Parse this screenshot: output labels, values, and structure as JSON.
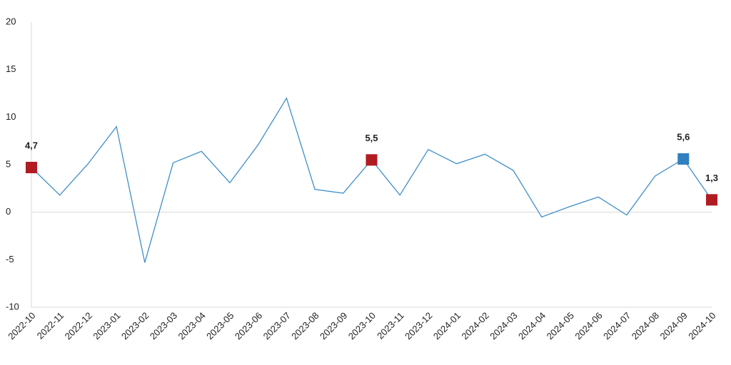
{
  "chart_data": {
    "type": "line",
    "x": [
      "2022-10",
      "2022-11",
      "2022-12",
      "2023-01",
      "2023-02",
      "2023-03",
      "2023-04",
      "2023-05",
      "2023-06",
      "2023-07",
      "2023-08",
      "2023-09",
      "2023-10",
      "2023-11",
      "2023-12",
      "2024-01",
      "2024-02",
      "2024-03",
      "2024-04",
      "2024-05",
      "2024-06",
      "2024-07",
      "2024-08",
      "2024-09",
      "2024-10"
    ],
    "series": [
      {
        "color": "#3f8fc7",
        "values": [
          4.7,
          1.8,
          5.1,
          9.0,
          -5.3,
          5.2,
          6.4,
          3.1,
          7.1,
          12.0,
          2.4,
          2.0,
          5.5,
          1.8,
          6.6,
          5.1,
          6.1,
          4.4,
          -0.5,
          0.6,
          1.6,
          -0.3,
          3.8,
          5.6,
          1.3
        ],
        "marker_colors": [
          "#b01c22",
          null,
          null,
          null,
          null,
          null,
          null,
          null,
          null,
          null,
          null,
          null,
          "#b01c22",
          null,
          null,
          null,
          null,
          null,
          null,
          null,
          null,
          null,
          null,
          "#2f7fc1",
          "#b01c22"
        ],
        "value_labels": [
          "4,7",
          null,
          null,
          null,
          null,
          null,
          null,
          null,
          null,
          null,
          null,
          null,
          "5,5",
          null,
          null,
          null,
          null,
          null,
          null,
          null,
          null,
          null,
          null,
          "5,6",
          "1,3"
        ]
      }
    ],
    "ylim": [
      -10,
      20
    ],
    "yticks": [
      -10,
      -5,
      0,
      5,
      10,
      15,
      20
    ],
    "zero_line": true
  }
}
